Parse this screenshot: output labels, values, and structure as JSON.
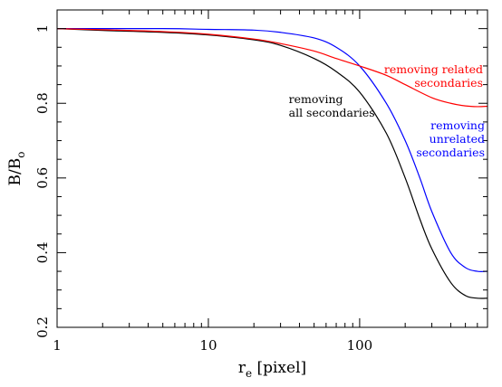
{
  "chart_data": {
    "type": "line",
    "title": "",
    "xlabel": {
      "main": "r",
      "sub": "e",
      "rest": " [pixel]"
    },
    "ylabel": {
      "main": "B/B",
      "sub": "o"
    },
    "xscale": "log",
    "xlim": [
      1,
      700
    ],
    "ylim": [
      0.2,
      1.05
    ],
    "xticks": [
      {
        "value": 1,
        "label": "1"
      },
      {
        "value": 10,
        "label": "10"
      },
      {
        "value": 100,
        "label": "100"
      }
    ],
    "yticks": [
      {
        "value": 0.2,
        "label": "0.2"
      },
      {
        "value": 0.4,
        "label": "0.4"
      },
      {
        "value": 0.6,
        "label": "0.6"
      },
      {
        "value": 0.8,
        "label": "0.8"
      },
      {
        "value": 1.0,
        "label": "1"
      }
    ],
    "grid": false,
    "series": [
      {
        "name": "removing all secondaries",
        "color": "#000000",
        "x": [
          1,
          2,
          5,
          10,
          20,
          30,
          50,
          70,
          100,
          150,
          200,
          250,
          300,
          400,
          500,
          600,
          700
        ],
        "y": [
          1.0,
          0.995,
          0.99,
          0.983,
          0.97,
          0.955,
          0.92,
          0.885,
          0.83,
          0.72,
          0.6,
          0.49,
          0.41,
          0.32,
          0.285,
          0.278,
          0.278
        ]
      },
      {
        "name": "removing unrelated secondaries",
        "color": "#0000ff",
        "x": [
          1,
          5,
          10,
          20,
          30,
          50,
          70,
          100,
          150,
          200,
          250,
          300,
          400,
          500,
          600,
          700
        ],
        "y": [
          1.0,
          1.0,
          0.998,
          0.996,
          0.99,
          0.975,
          0.95,
          0.9,
          0.8,
          0.7,
          0.6,
          0.51,
          0.4,
          0.36,
          0.35,
          0.35
        ]
      },
      {
        "name": "removing related secondaries",
        "color": "#ff0000",
        "x": [
          1,
          2,
          5,
          10,
          20,
          30,
          50,
          70,
          100,
          150,
          200,
          300,
          400,
          500,
          600,
          700
        ],
        "y": [
          1.0,
          0.997,
          0.992,
          0.985,
          0.972,
          0.96,
          0.94,
          0.92,
          0.9,
          0.875,
          0.85,
          0.815,
          0.8,
          0.793,
          0.791,
          0.792
        ]
      }
    ],
    "annotations": [
      {
        "lines": [
          "removing related",
          "secondaries"
        ],
        "color": "#ff0000",
        "align": "right",
        "x": 300,
        "y": 0.88
      },
      {
        "lines": [
          "removing",
          "all secondaries"
        ],
        "color": "#000000",
        "align": "left",
        "x": 50,
        "y": 0.8
      },
      {
        "lines": [
          "removing",
          "unrelated",
          "secondaries"
        ],
        "color": "#0000ff",
        "align": "right",
        "x": 450,
        "y": 0.73
      }
    ]
  }
}
